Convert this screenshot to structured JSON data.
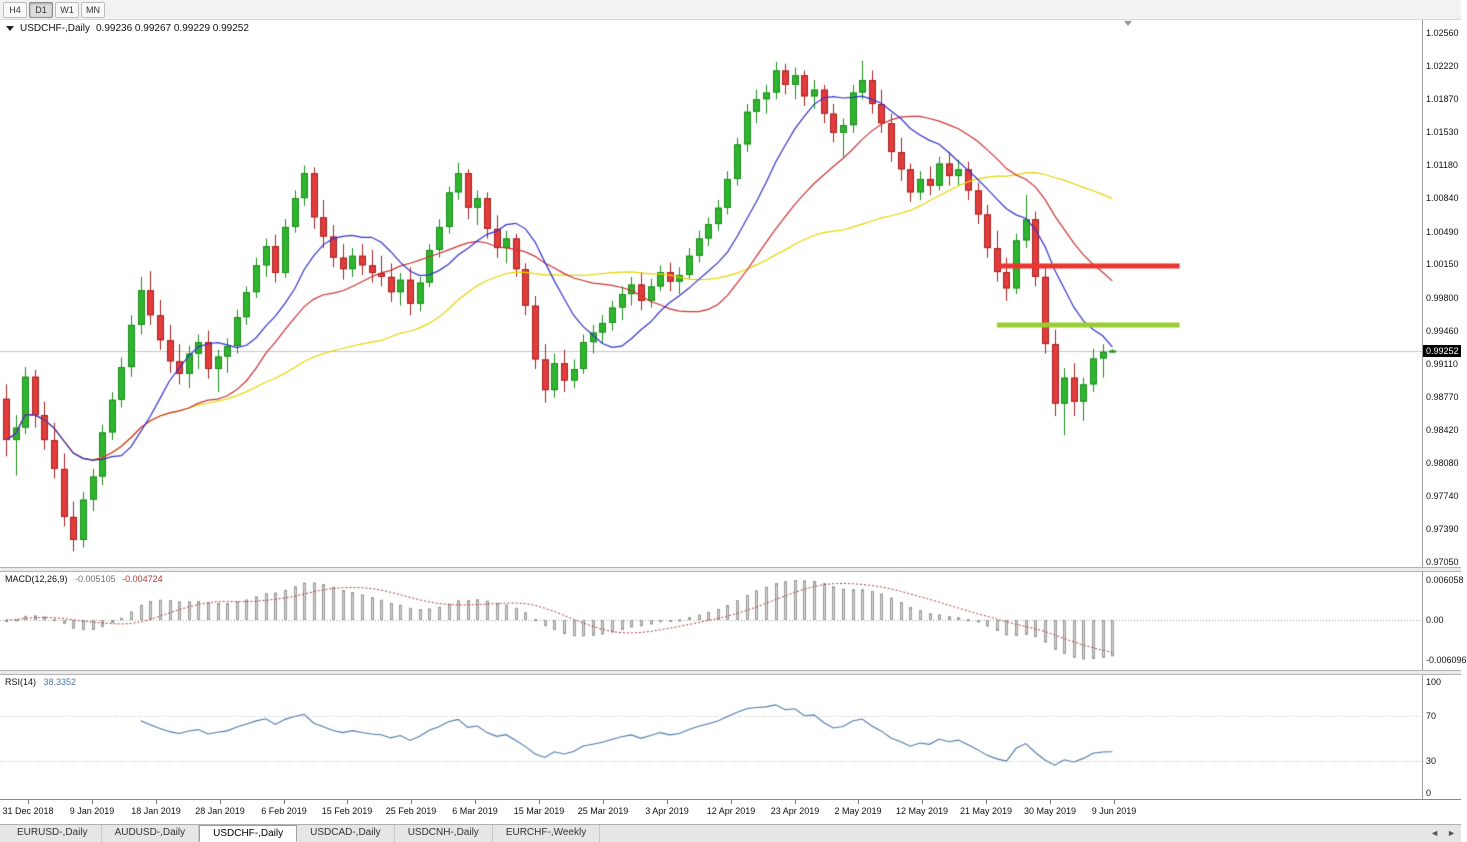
{
  "app": {
    "toolbar": {
      "periods": [
        {
          "label": "H4",
          "active": false
        },
        {
          "label": "D1",
          "active": true
        },
        {
          "label": "W1",
          "active": false
        },
        {
          "label": "MN",
          "active": false
        }
      ]
    },
    "tabs": {
      "items": [
        {
          "label": "EURUSD-,Daily",
          "active": false
        },
        {
          "label": "AUDUSD-,Daily",
          "active": false
        },
        {
          "label": "USDCHF-,Daily",
          "active": true
        },
        {
          "label": "USDCAD-,Daily",
          "active": false
        },
        {
          "label": "USDCNH-,Daily",
          "active": false
        },
        {
          "label": "EURCHF-,Weekly",
          "active": false
        }
      ],
      "scroll_left_icon": "◄",
      "scroll_right_icon": "►"
    }
  },
  "main_chart": {
    "title": {
      "symbol_period": "USDCHF-,Daily",
      "ohlc": "0.99236 0.99267 0.99229 0.99252"
    },
    "current_price": "0.99252",
    "price_axis_labels": [
      "1.02560",
      "1.02220",
      "1.01870",
      "1.01530",
      "1.01180",
      "1.00840",
      "1.00490",
      "1.00150",
      "0.99800",
      "0.99460",
      "0.99110",
      "0.98770",
      "0.98420",
      "0.98080",
      "0.97740",
      "0.97390",
      "0.97050"
    ]
  },
  "macd_panel": {
    "label": "MACD(12,26,9)",
    "value_main": "-0.005105",
    "value_signal": "-0.004724",
    "axis_labels": [
      "0.006058",
      "0.00",
      "-0.006096"
    ]
  },
  "rsi_panel": {
    "label": "RSI(14)",
    "value": "38.3352",
    "axis_labels": [
      "100",
      "70",
      "30",
      "0"
    ]
  },
  "time_axis": {
    "labels": [
      "31 Dec 2018",
      "9 Jan 2019",
      "18 Jan 2019",
      "28 Jan 2019",
      "6 Feb 2019",
      "15 Feb 2019",
      "25 Feb 2019",
      "6 Mar 2019",
      "15 Mar 2019",
      "25 Mar 2019",
      "3 Apr 2019",
      "12 Apr 2019",
      "23 Apr 2019",
      "2 May 2019",
      "12 May 2019",
      "21 May 2019",
      "30 May 2019",
      "9 Jun 2019"
    ]
  },
  "chart_data": {
    "type": "candlestick",
    "symbol": "USDCHF-",
    "timeframe": "Daily",
    "price_range": [
      0.9705,
      1.0256
    ],
    "colors": {
      "bull": "#2fb52f",
      "bull_border": "#1c8c1c",
      "bear": "#e23c3c",
      "bear_border": "#a82020",
      "ma_fast": "#3333cc",
      "ma_medium": "#cc3333",
      "ma_slow": "#e6d500",
      "macd_hist_fill": "#d6d6d6",
      "macd_hist_border": "#9a9a9a",
      "macd_signal": "#b03a3a",
      "rsi_line": "#4d79a8",
      "resistance": "#e8352e",
      "support": "#9acd32",
      "price_tag_bg": "#000000"
    },
    "moving_averages": [
      {
        "name": "fast",
        "period": 10,
        "color": "#3333cc"
      },
      {
        "name": "medium",
        "period": 20,
        "color": "#cc3333"
      },
      {
        "name": "slow",
        "period": 40,
        "color": "#e6d500"
      }
    ],
    "indicators": {
      "macd": {
        "fast": 12,
        "slow": 26,
        "signal": 9,
        "current_main": -0.005105,
        "current_signal": -0.004724
      },
      "rsi": {
        "period": 14,
        "current": 38.3352,
        "levels": [
          70,
          30
        ]
      }
    },
    "overlays": [
      {
        "type": "resistance-line",
        "price": 1.0013,
        "from_bar": 103,
        "to_bar": 122,
        "color": "#e8352e",
        "width": 5
      },
      {
        "type": "support-line",
        "price": 0.9952,
        "from_bar": 103,
        "to_bar": 122,
        "color": "#9acd32",
        "width": 5
      }
    ],
    "candles": [
      [
        0.9875,
        0.989,
        0.9815,
        0.9832
      ],
      [
        0.9832,
        0.9858,
        0.9795,
        0.9845
      ],
      [
        0.9845,
        0.9908,
        0.9838,
        0.9898
      ],
      [
        0.9898,
        0.9905,
        0.9845,
        0.9858
      ],
      [
        0.9858,
        0.9872,
        0.9822,
        0.9832
      ],
      [
        0.9832,
        0.985,
        0.9792,
        0.9802
      ],
      [
        0.9802,
        0.9818,
        0.9742,
        0.9752
      ],
      [
        0.9752,
        0.9768,
        0.9716,
        0.9728
      ],
      [
        0.9728,
        0.9778,
        0.972,
        0.977
      ],
      [
        0.977,
        0.9802,
        0.9758,
        0.9794
      ],
      [
        0.9794,
        0.9848,
        0.9785,
        0.984
      ],
      [
        0.984,
        0.9882,
        0.9832,
        0.9874
      ],
      [
        0.9874,
        0.9918,
        0.9866,
        0.9908
      ],
      [
        0.9908,
        0.9962,
        0.9898,
        0.9952
      ],
      [
        0.9952,
        1.0002,
        0.9942,
        0.9988
      ],
      [
        0.9988,
        1.0008,
        0.9952,
        0.9962
      ],
      [
        0.9962,
        0.9978,
        0.9926,
        0.9936
      ],
      [
        0.9936,
        0.9952,
        0.9902,
        0.9914
      ],
      [
        0.9914,
        0.9932,
        0.989,
        0.9901
      ],
      [
        0.9901,
        0.993,
        0.9886,
        0.9922
      ],
      [
        0.9922,
        0.9942,
        0.9906,
        0.9934
      ],
      [
        0.9934,
        0.9946,
        0.9896,
        0.9906
      ],
      [
        0.9906,
        0.9926,
        0.9882,
        0.9919
      ],
      [
        0.9919,
        0.9938,
        0.9902,
        0.993
      ],
      [
        0.993,
        0.9968,
        0.9922,
        0.996
      ],
      [
        0.996,
        0.9992,
        0.9952,
        0.9986
      ],
      [
        0.9986,
        1.0022,
        0.998,
        1.0014
      ],
      [
        1.0014,
        1.0042,
        1.0002,
        1.0034
      ],
      [
        1.0034,
        1.0046,
        0.9996,
        1.0006
      ],
      [
        1.0006,
        1.0062,
        1.0001,
        1.0054
      ],
      [
        1.0054,
        1.0092,
        1.0048,
        1.0084
      ],
      [
        1.0084,
        1.0118,
        1.0076,
        1.011
      ],
      [
        1.011,
        1.0116,
        1.0052,
        1.0064
      ],
      [
        1.0064,
        1.0082,
        1.0032,
        1.0044
      ],
      [
        1.0044,
        1.0056,
        1.0012,
        1.0022
      ],
      [
        1.0022,
        1.0036,
        0.9999,
        1.001
      ],
      [
        1.001,
        1.0032,
        1.0002,
        1.0024
      ],
      [
        1.0024,
        1.0036,
        1.0004,
        1.0014
      ],
      [
        1.0014,
        1.003,
        0.9996,
        1.0006
      ],
      [
        1.0006,
        1.0024,
        0.9992,
        1.0002
      ],
      [
        1.0002,
        1.0016,
        0.9976,
        0.9986
      ],
      [
        0.9986,
        1.0006,
        0.9972,
        0.9999
      ],
      [
        0.9999,
        1.0012,
        0.9962,
        0.9974
      ],
      [
        0.9974,
        1.0002,
        0.9966,
        0.9996
      ],
      [
        0.9996,
        1.0036,
        0.9991,
        1.003
      ],
      [
        1.003,
        1.0062,
        1.0022,
        1.0054
      ],
      [
        1.0054,
        1.0096,
        1.0047,
        1.009
      ],
      [
        1.009,
        1.0121,
        1.0082,
        1.011
      ],
      [
        1.011,
        1.0114,
        1.0062,
        1.0074
      ],
      [
        1.0074,
        1.0092,
        1.0056,
        1.0084
      ],
      [
        1.0084,
        1.009,
        1.0042,
        1.0052
      ],
      [
        1.0052,
        1.0066,
        1.0022,
        1.0032
      ],
      [
        1.0032,
        1.005,
        1.0016,
        1.0042
      ],
      [
        1.0042,
        1.0047,
        1.0002,
        1.001
      ],
      [
        1.001,
        1.0016,
        0.9962,
        0.9972
      ],
      [
        0.9972,
        0.9982,
        0.9906,
        0.9916
      ],
      [
        0.9916,
        0.9932,
        0.9871,
        0.9884
      ],
      [
        0.9884,
        0.9922,
        0.9876,
        0.9912
      ],
      [
        0.9912,
        0.9926,
        0.9882,
        0.9894
      ],
      [
        0.9894,
        0.9916,
        0.9886,
        0.9906
      ],
      [
        0.9906,
        0.9942,
        0.9901,
        0.9934
      ],
      [
        0.9934,
        0.9952,
        0.9922,
        0.9944
      ],
      [
        0.9944,
        0.9962,
        0.9932,
        0.9954
      ],
      [
        0.9954,
        0.9977,
        0.9946,
        0.997
      ],
      [
        0.997,
        0.9992,
        0.9957,
        0.9984
      ],
      [
        0.9984,
        1.0002,
        0.9972,
        0.9994
      ],
      [
        0.9994,
        1.0007,
        0.9967,
        0.9977
      ],
      [
        0.9977,
        1.0,
        0.997,
        0.9992
      ],
      [
        0.9992,
        1.0014,
        0.9987,
        1.0007
      ],
      [
        1.0007,
        1.0017,
        0.9987,
        0.9997
      ],
      [
        0.9997,
        1.0012,
        0.9984,
        1.0004
      ],
      [
        1.0004,
        1.0032,
        1.0,
        1.0024
      ],
      [
        1.0024,
        1.005,
        1.0017,
        1.0042
      ],
      [
        1.0042,
        1.0064,
        1.0034,
        1.0057
      ],
      [
        1.0057,
        1.0082,
        1.005,
        1.0074
      ],
      [
        1.0074,
        1.0112,
        1.0067,
        1.0104
      ],
      [
        1.0104,
        1.0147,
        1.0097,
        1.014
      ],
      [
        1.014,
        1.0182,
        1.0132,
        1.0174
      ],
      [
        1.0174,
        1.0197,
        1.0162,
        1.0187
      ],
      [
        1.0187,
        1.0202,
        1.0172,
        1.0194
      ],
      [
        1.0194,
        1.0226,
        1.0187,
        1.0217
      ],
      [
        1.0217,
        1.0224,
        1.0192,
        1.0202
      ],
      [
        1.0202,
        1.022,
        1.0187,
        1.0212
      ],
      [
        1.0212,
        1.0217,
        1.018,
        1.019
      ],
      [
        1.019,
        1.0207,
        1.0177,
        1.0197
      ],
      [
        1.0197,
        1.0202,
        1.0162,
        1.0172
      ],
      [
        1.0172,
        1.0182,
        1.0142,
        1.0152
      ],
      [
        1.0152,
        1.0167,
        1.0127,
        1.016
      ],
      [
        1.016,
        1.0202,
        1.0152,
        1.0194
      ],
      [
        1.0194,
        1.0227,
        1.0187,
        1.0207
      ],
      [
        1.0207,
        1.0217,
        1.0172,
        1.0182
      ],
      [
        1.0182,
        1.0197,
        1.0152,
        1.0162
      ],
      [
        1.0162,
        1.0172,
        1.0122,
        1.0132
      ],
      [
        1.0132,
        1.0147,
        1.0102,
        1.0114
      ],
      [
        1.0114,
        1.012,
        1.008,
        1.009
      ],
      [
        1.009,
        1.0112,
        1.0082,
        1.0104
      ],
      [
        1.0104,
        1.0117,
        1.0087,
        1.0097
      ],
      [
        1.0097,
        1.0127,
        1.0092,
        1.012
      ],
      [
        1.012,
        1.0132,
        1.0097,
        1.0107
      ],
      [
        1.0107,
        1.0124,
        1.0097,
        1.0114
      ],
      [
        1.0114,
        1.0122,
        1.0082,
        1.0092
      ],
      [
        1.0092,
        1.01,
        1.0057,
        1.0067
      ],
      [
        1.0067,
        1.0077,
        1.0022,
        1.0032
      ],
      [
        1.0032,
        1.005,
        0.9997,
        1.0007
      ],
      [
        1.0007,
        1.0022,
        0.9977,
        0.999
      ],
      [
        0.999,
        1.0047,
        0.9984,
        1.004
      ],
      [
        1.004,
        1.0087,
        1.0032,
        1.0062
      ],
      [
        1.0062,
        1.007,
        0.9992,
        1.0002
      ],
      [
        1.0002,
        1.0012,
        0.9922,
        0.9932
      ],
      [
        0.9932,
        0.9947,
        0.9857,
        0.987
      ],
      [
        0.987,
        0.9907,
        0.9837,
        0.9897
      ],
      [
        0.9897,
        0.9912,
        0.9857,
        0.9872
      ],
      [
        0.9872,
        0.9897,
        0.9852,
        0.989
      ],
      [
        0.989,
        0.9927,
        0.9882,
        0.9917
      ],
      [
        0.9917,
        0.9932,
        0.9897,
        0.9924
      ],
      [
        0.99236,
        0.99267,
        0.99229,
        0.99252
      ]
    ]
  }
}
